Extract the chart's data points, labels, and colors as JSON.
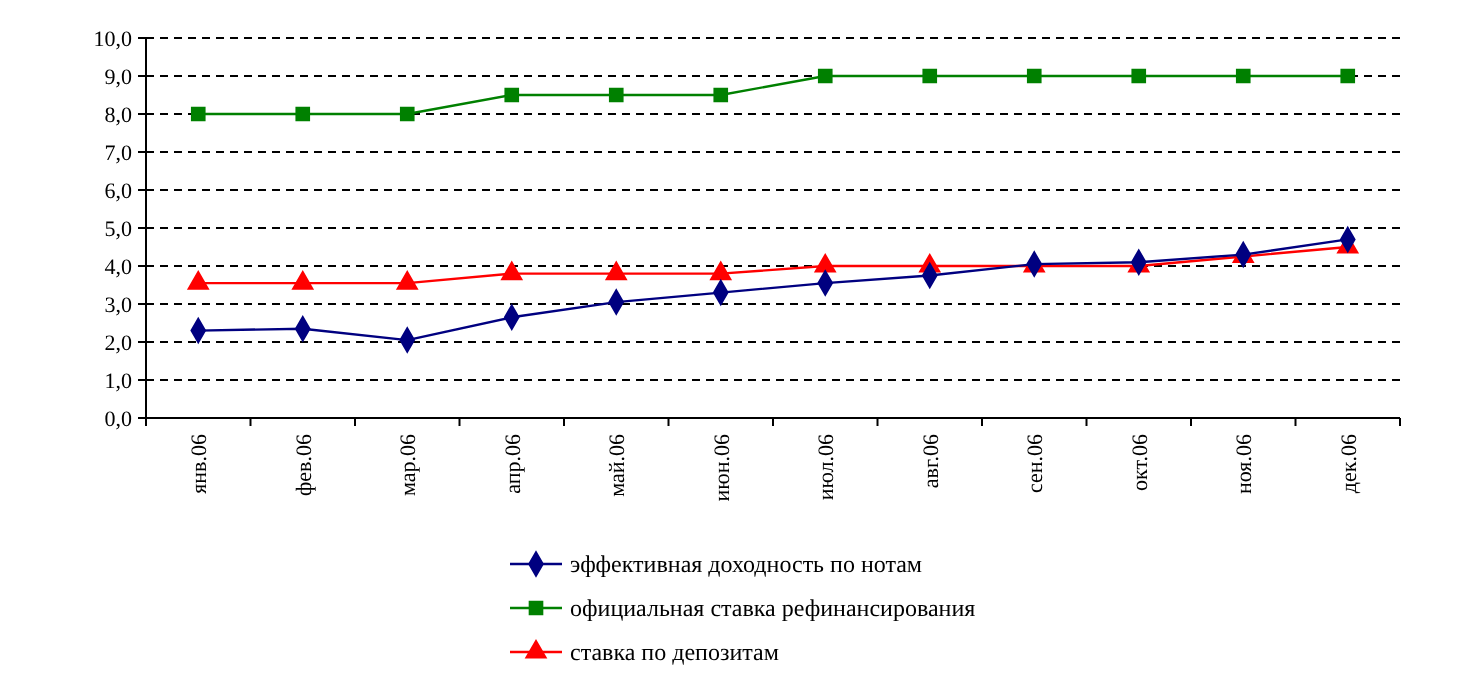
{
  "chart_data": {
    "type": "line",
    "categories": [
      "янв.06",
      "фев.06",
      "мар.06",
      "апр.06",
      "май.06",
      "июн.06",
      "июл.06",
      "авг.06",
      "сен.06",
      "окт.06",
      "ноя.06",
      "дек.06"
    ],
    "series": [
      {
        "name": "эффективная доходность по нотам",
        "color": "#000080",
        "marker": "diamond",
        "values": [
          2.3,
          2.35,
          2.05,
          2.65,
          3.05,
          3.3,
          3.55,
          3.75,
          4.05,
          4.1,
          4.3,
          4.7
        ]
      },
      {
        "name": "официальная ставка рефинансирования",
        "color": "#008000",
        "marker": "square",
        "values": [
          8,
          8,
          8,
          8.5,
          8.5,
          8.5,
          9,
          9,
          9,
          9,
          9,
          9
        ]
      },
      {
        "name": "ставка по депозитам",
        "color": "#ff0000",
        "marker": "triangle",
        "values": [
          3.55,
          3.55,
          3.55,
          3.8,
          3.8,
          3.8,
          4,
          4,
          4,
          4,
          4.25,
          4.5
        ]
      }
    ],
    "ylim": [
      0,
      10
    ],
    "yticks": [
      {
        "value": 0,
        "label": "0,0"
      },
      {
        "value": 1,
        "label": "1,0"
      },
      {
        "value": 2,
        "label": "2,0"
      },
      {
        "value": 3,
        "label": "3,0"
      },
      {
        "value": 4,
        "label": "4,0"
      },
      {
        "value": 5,
        "label": "5,0"
      },
      {
        "value": 6,
        "label": "6,0"
      },
      {
        "value": 7,
        "label": "7,0"
      },
      {
        "value": 8,
        "label": "8,0"
      },
      {
        "value": 9,
        "label": "9,0"
      },
      {
        "value": 10,
        "label": "10,0"
      }
    ],
    "grid": "y",
    "legend": "bottom",
    "line_style": "solid"
  }
}
